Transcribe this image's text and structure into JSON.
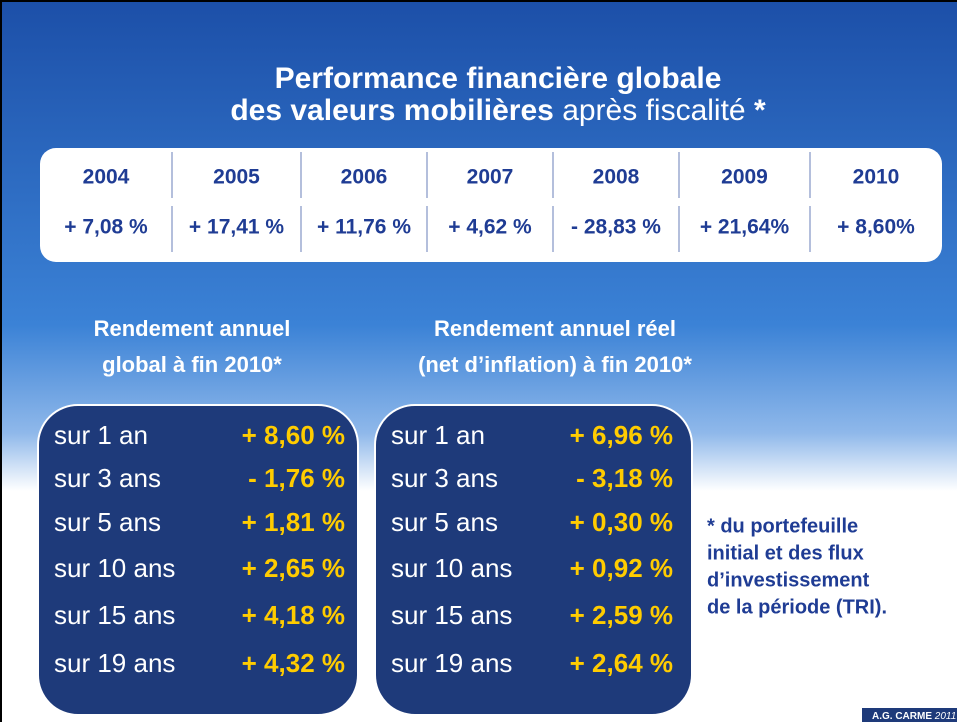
{
  "title": {
    "line1": "Performance financière globale",
    "line2_bold": "des valeurs mobilières",
    "line2_normal": "après fiscalité",
    "line2_star": "*"
  },
  "table": {
    "header": [
      "2004",
      "2005",
      "2006",
      "2007",
      "2008",
      "2009",
      "2010"
    ],
    "values": [
      "+ 7,08 %",
      "+ 17,41 %",
      "+ 11,76 %",
      "+ 4,62 %",
      "- 28,83 %",
      "+ 21,64%",
      "+ 8,60%"
    ]
  },
  "panels": [
    {
      "heading": [
        "Rendement annuel",
        "global à fin 2010*"
      ],
      "rows": [
        {
          "label": "sur 1 an",
          "value": "+ 8,60 %"
        },
        {
          "label": "sur 3 ans",
          "value": "-  1,76 %"
        },
        {
          "label": "sur 5 ans",
          "value": "+ 1,81 %"
        },
        {
          "label": "sur 10 ans",
          "value": "+ 2,65 %"
        },
        {
          "label": "sur 15 ans",
          "value": "+ 4,18 %"
        },
        {
          "label": "sur 19 ans",
          "value": "+ 4,32 %"
        }
      ]
    },
    {
      "heading": [
        "Rendement annuel réel",
        "(net d’inflation) à fin 2010*"
      ],
      "rows": [
        {
          "label": "sur 1 an",
          "value": "+ 6,96 %"
        },
        {
          "label": "sur 3 ans",
          "value": "- 3,18 %"
        },
        {
          "label": "sur 5 ans",
          "value": "+ 0,30 %"
        },
        {
          "label": "sur 10 ans",
          "value": "+ 0,92 %"
        },
        {
          "label": "sur 15 ans",
          "value": "+ 2,59 %"
        },
        {
          "label": "sur 19 ans",
          "value": "+ 2,64 %"
        }
      ]
    }
  ],
  "footnote": [
    "* du portefeuille",
    "initial et des flux",
    "d’investissement",
    "de la période (TRI)."
  ],
  "footer": {
    "name": "A.G. CARME",
    "year": "2011"
  }
}
